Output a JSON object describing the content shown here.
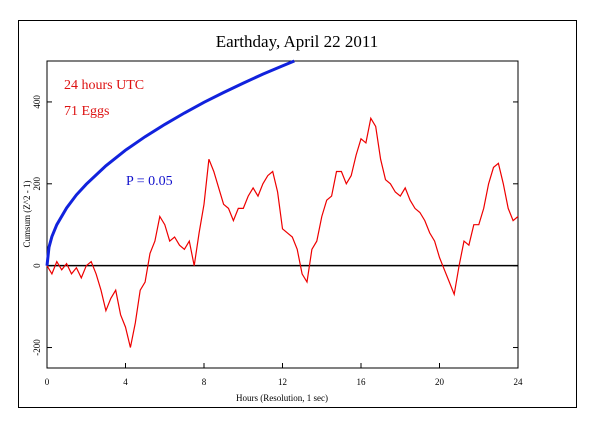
{
  "chart_data": {
    "type": "line",
    "title": "Earthday, April 22 2011",
    "xlabel": "Hours (Resolution, 1 sec)",
    "ylabel": "Cumsum (Z^2 - 1)",
    "annotations": [
      {
        "text": "24 hours UTC",
        "color": "#dd1111"
      },
      {
        "text": "71 Eggs",
        "color": "#dd1111"
      },
      {
        "text": "P = 0.05",
        "color": "#1111cc"
      }
    ],
    "xlim": [
      0,
      24
    ],
    "xticks": [
      0,
      4,
      8,
      12,
      16,
      20,
      24
    ],
    "ylim": [
      -250,
      500
    ],
    "yticks": [
      -200,
      0,
      200,
      400
    ],
    "reference_line": 0,
    "series": [
      {
        "color": "#ee0000",
        "x": [
          0,
          0.25,
          0.5,
          0.75,
          1,
          1.25,
          1.5,
          1.75,
          2,
          2.25,
          2.5,
          2.75,
          3,
          3.25,
          3.5,
          3.75,
          4,
          4.25,
          4.5,
          4.75,
          5,
          5.25,
          5.5,
          5.75,
          6,
          6.25,
          6.5,
          6.75,
          7,
          7.25,
          7.5,
          7.75,
          8,
          8.25,
          8.5,
          8.75,
          9,
          9.25,
          9.5,
          9.75,
          10,
          10.25,
          10.5,
          10.75,
          11,
          11.25,
          11.5,
          11.75,
          12,
          12.25,
          12.5,
          12.75,
          13,
          13.25,
          13.5,
          13.75,
          14,
          14.25,
          14.5,
          14.75,
          15,
          15.25,
          15.5,
          15.75,
          16,
          16.25,
          16.5,
          16.75,
          17,
          17.25,
          17.5,
          17.75,
          18,
          18.25,
          18.5,
          18.75,
          19,
          19.25,
          19.5,
          19.75,
          20,
          20.25,
          20.5,
          20.75,
          21,
          21.25,
          21.5,
          21.75,
          22,
          22.25,
          22.5,
          22.75,
          23,
          23.25,
          23.5,
          23.75,
          24
        ],
        "values": [
          0,
          -20,
          10,
          -10,
          5,
          -20,
          -5,
          -30,
          0,
          10,
          -20,
          -60,
          -110,
          -80,
          -60,
          -120,
          -150,
          -200,
          -140,
          -60,
          -40,
          30,
          60,
          120,
          100,
          60,
          70,
          50,
          40,
          60,
          0,
          80,
          150,
          260,
          230,
          190,
          150,
          140,
          110,
          140,
          140,
          170,
          190,
          170,
          200,
          220,
          230,
          180,
          90,
          80,
          70,
          40,
          -20,
          -40,
          40,
          60,
          120,
          160,
          170,
          230,
          230,
          200,
          220,
          270,
          310,
          300,
          360,
          340,
          260,
          210,
          200,
          180,
          170,
          190,
          160,
          140,
          130,
          110,
          80,
          60,
          20,
          -10,
          -40,
          -70,
          0,
          60,
          50,
          100,
          100,
          140,
          200,
          240,
          250,
          200,
          140,
          110,
          120
        ]
      },
      {
        "color": "#1122dd",
        "x": [
          0,
          0.1,
          0.25,
          0.5,
          1,
          1.5,
          2,
          3,
          4,
          5,
          6,
          7,
          8,
          9,
          10,
          11,
          12,
          12.6
        ],
        "values": [
          0,
          45,
          71,
          100,
          141,
          173,
          199,
          244,
          282,
          315,
          345,
          373,
          399,
          423,
          446,
          468,
          488,
          500
        ]
      }
    ]
  }
}
